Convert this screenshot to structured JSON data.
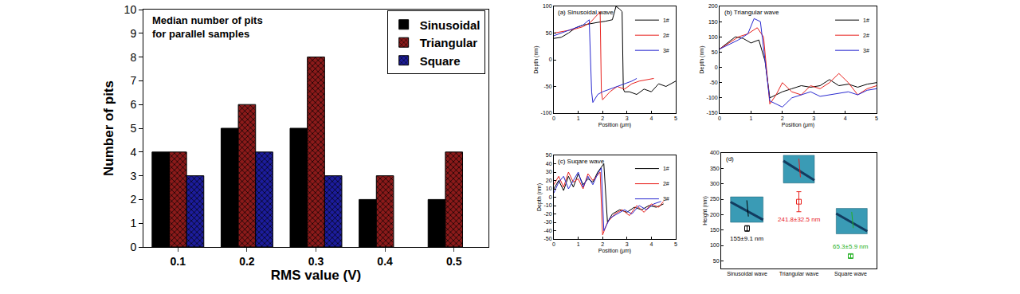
{
  "chart_data": [
    {
      "type": "bar",
      "title": "Median number of pits\nfor parallel samples",
      "x_label": "RMS value (V)",
      "y_label": "Number of pits",
      "categories": [
        "0.1",
        "0.2",
        "0.3",
        "0.4",
        "0.5"
      ],
      "series": [
        {
          "name": "Sinusoidal",
          "color": "#000000",
          "marker": "solid",
          "values": [
            4,
            5,
            5,
            2,
            2
          ]
        },
        {
          "name": "Triangular",
          "color": "#8b1a1a",
          "marker": "crosshatch",
          "values": [
            4,
            6,
            8,
            3,
            4
          ]
        },
        {
          "name": "Square",
          "color": "#1c1c9c",
          "marker": "crosshatch",
          "values": [
            3,
            4,
            3,
            null,
            null
          ]
        }
      ],
      "ylim": [
        0,
        10
      ],
      "yticks": [
        0,
        1,
        2,
        3,
        4,
        5,
        6,
        7,
        8,
        9,
        10
      ],
      "grid": false,
      "legend": "upper right"
    },
    {
      "type": "line",
      "title": "(a) Sinusoidal wave",
      "x_label": "Position (μm)",
      "y_label": "Depth (nm)",
      "xlim": [
        0,
        5
      ],
      "xticks": [
        0,
        1,
        2,
        3,
        4,
        5
      ],
      "ylim": [
        -100,
        100
      ],
      "yticks": [
        -100,
        -50,
        0,
        50,
        100
      ],
      "grid": false,
      "legend": "upper right",
      "series": [
        {
          "name": "1#",
          "color": "#000000",
          "x": [
            0,
            0.3,
            0.6,
            0.9,
            1.2,
            1.5,
            1.8,
            2.1,
            2.4,
            2.55,
            2.7,
            2.8,
            2.85,
            2.9,
            3.1,
            3.4,
            3.7,
            4.0,
            4.3,
            4.6,
            5.0
          ],
          "values": [
            40,
            42,
            50,
            60,
            65,
            68,
            70,
            72,
            75,
            100,
            95,
            90,
            -55,
            -60,
            -60,
            -65,
            -55,
            -60,
            -45,
            -50,
            -40
          ]
        },
        {
          "name": "2#",
          "color": "#e8201c",
          "x": [
            0,
            0.3,
            0.6,
            0.9,
            1.2,
            1.5,
            1.8,
            1.9,
            1.95,
            2.0,
            2.3,
            2.6,
            2.9,
            3.2,
            3.5,
            3.8,
            4.1
          ],
          "values": [
            50,
            52,
            55,
            58,
            62,
            70,
            85,
            90,
            -60,
            -75,
            -60,
            -50,
            -55,
            -45,
            -40,
            -38,
            -35
          ]
        },
        {
          "name": "3#",
          "color": "#2a2ad0",
          "x": [
            0,
            0.3,
            0.6,
            0.9,
            1.2,
            1.45,
            1.55,
            1.6,
            1.8,
            2.0,
            2.3,
            2.6,
            2.9,
            3.2,
            3.4
          ],
          "values": [
            45,
            50,
            55,
            60,
            65,
            75,
            -60,
            -80,
            -65,
            -60,
            -55,
            -50,
            -45,
            -40,
            -35
          ]
        }
      ]
    },
    {
      "type": "line",
      "title": "(b) Triangular wave",
      "x_label": "Position (μm)",
      "y_label": "Depth (nm)",
      "xlim": [
        0,
        5
      ],
      "xticks": [
        0,
        1,
        2,
        3,
        4,
        5
      ],
      "ylim": [
        -150,
        200
      ],
      "yticks": [
        -150,
        -100,
        -50,
        0,
        50,
        100,
        150,
        200
      ],
      "grid": false,
      "legend": "upper right",
      "series": [
        {
          "name": "1#",
          "color": "#000000",
          "x": [
            0,
            0.25,
            0.5,
            0.75,
            1.0,
            1.25,
            1.45,
            1.6,
            1.8,
            2.0,
            2.3,
            2.6,
            2.9,
            3.2,
            3.5,
            3.8,
            4.1,
            4.4,
            4.7,
            5.0
          ],
          "values": [
            60,
            80,
            100,
            95,
            80,
            90,
            20,
            -100,
            -90,
            -80,
            -70,
            -60,
            -65,
            -60,
            -40,
            -60,
            -55,
            -65,
            -55,
            -50
          ]
        },
        {
          "name": "2#",
          "color": "#e8201c",
          "x": [
            0,
            0.3,
            0.6,
            0.9,
            1.2,
            1.4,
            1.6,
            1.8,
            2.0,
            2.3,
            2.6,
            2.9,
            3.2,
            3.5,
            3.8,
            4.1,
            4.4,
            4.7,
            5.0
          ],
          "values": [
            60,
            80,
            100,
            110,
            130,
            100,
            -120,
            -90,
            -50,
            -80,
            -90,
            -60,
            -70,
            -50,
            -20,
            -50,
            -90,
            -70,
            -60
          ]
        },
        {
          "name": "3#",
          "color": "#2a2ad0",
          "x": [
            0,
            0.3,
            0.6,
            0.9,
            1.1,
            1.3,
            1.45,
            1.6,
            1.8,
            2.0,
            2.3,
            2.6,
            2.9,
            3.2,
            3.5,
            3.8,
            4.1,
            4.4,
            4.7,
            5.0
          ],
          "values": [
            60,
            75,
            90,
            110,
            160,
            150,
            20,
            -110,
            -120,
            -130,
            -100,
            -90,
            -80,
            -95,
            -90,
            -85,
            -80,
            -90,
            -75,
            -70
          ]
        }
      ]
    },
    {
      "type": "line",
      "title": "(c) Suqare wave",
      "x_label": "Position (μm)",
      "y_label": "Depth (nm)",
      "xlim": [
        0,
        5
      ],
      "xticks": [
        0,
        1,
        2,
        3,
        4,
        5
      ],
      "ylim": [
        -50,
        50
      ],
      "yticks": [
        -50,
        -40,
        -30,
        -20,
        -10,
        0,
        10,
        20,
        30,
        40,
        50
      ],
      "grid": false,
      "legend": "upper right",
      "series": [
        {
          "name": "1#",
          "color": "#000000",
          "x": [
            0,
            0.2,
            0.4,
            0.6,
            0.8,
            1.0,
            1.2,
            1.4,
            1.6,
            1.8,
            2.05,
            2.2,
            2.4,
            2.7,
            3.0,
            3.3,
            3.6,
            3.9,
            4.2,
            4.5
          ],
          "values": [
            10,
            20,
            8,
            25,
            12,
            28,
            15,
            22,
            18,
            30,
            40,
            -30,
            -20,
            -15,
            -18,
            -12,
            -15,
            -10,
            -12,
            -8
          ]
        },
        {
          "name": "2#",
          "color": "#e8201c",
          "x": [
            0,
            0.2,
            0.4,
            0.6,
            0.8,
            1.0,
            1.2,
            1.4,
            1.6,
            1.9,
            2.0,
            2.2,
            2.5,
            2.8,
            3.1,
            3.4,
            3.7,
            4.0,
            4.3,
            4.5
          ],
          "values": [
            15,
            25,
            12,
            30,
            18,
            22,
            10,
            28,
            20,
            30,
            -45,
            -30,
            -20,
            -15,
            -22,
            -10,
            -18,
            -8,
            -12,
            -5
          ]
        },
        {
          "name": "3#",
          "color": "#2a2ad0",
          "x": [
            0,
            0.2,
            0.4,
            0.6,
            0.8,
            1.0,
            1.2,
            1.4,
            1.6,
            1.8,
            1.95,
            2.05,
            2.3,
            2.6,
            2.9,
            3.2,
            3.5,
            3.8,
            4.1,
            4.4
          ],
          "values": [
            5,
            18,
            25,
            10,
            20,
            30,
            12,
            25,
            15,
            28,
            35,
            -40,
            -25,
            -20,
            -15,
            -20,
            -10,
            -15,
            -8,
            -5
          ]
        }
      ]
    },
    {
      "type": "scatter",
      "title": "(d)",
      "y_label": "Height (nm)",
      "categories": [
        "Sinusoidal wave",
        "Triangular wave",
        "Square wave"
      ],
      "values": [
        155,
        241.8,
        65.3
      ],
      "errors": [
        9.1,
        32.5,
        5.9
      ],
      "value_labels": [
        "155±9.1 nm",
        "241.8±32.5 nm",
        "65.3±5.9 nm"
      ],
      "colors": [
        "#000000",
        "#e8201c",
        "#22b022"
      ],
      "marker": "open square",
      "ylim": [
        25,
        400
      ],
      "yticks": [
        50,
        100,
        150,
        200,
        250,
        300,
        350,
        400
      ],
      "grid": false,
      "data_labels": true
    }
  ]
}
